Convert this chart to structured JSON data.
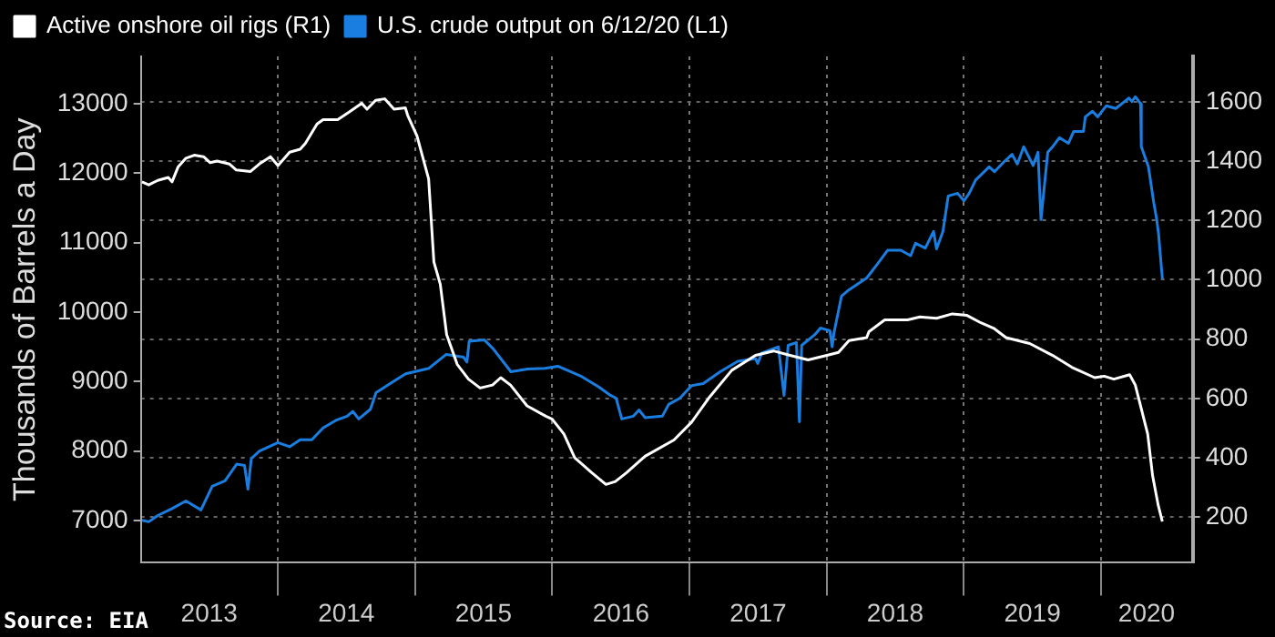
{
  "chart_data": {
    "type": "line",
    "ylabel": "Thousands of Barrels a Day",
    "legend": "top left",
    "grid": true,
    "annotations": [
      "Source: EIA"
    ],
    "xlim": [
      "2013-01-01",
      "2020-09-01"
    ],
    "xticks": [
      {
        "value": "2013-07-02",
        "label": "2013"
      },
      {
        "value": "2014-01-01",
        "label": null
      },
      {
        "value": "2014-07-02",
        "label": "2014"
      },
      {
        "value": "2015-01-01",
        "label": null
      },
      {
        "value": "2015-07-02",
        "label": "2015"
      },
      {
        "value": "2016-01-01",
        "label": null
      },
      {
        "value": "2016-07-02",
        "label": "2016"
      },
      {
        "value": "2017-01-01",
        "label": null
      },
      {
        "value": "2017-07-02",
        "label": "2017"
      },
      {
        "value": "2018-01-01",
        "label": null
      },
      {
        "value": "2018-07-02",
        "label": "2018"
      },
      {
        "value": "2019-01-01",
        "label": null
      },
      {
        "value": "2019-07-02",
        "label": "2019"
      },
      {
        "value": "2020-01-01",
        "label": null
      },
      {
        "value": "2020-05-01",
        "label": "2020"
      }
    ],
    "ylim": [
      6390,
      13680
    ],
    "yticks": [
      7000,
      8000,
      9000,
      10000,
      11000,
      12000,
      13000
    ],
    "y2lim": [
      46,
      1753
    ],
    "y2ticks": [
      200,
      400,
      600,
      800,
      1000,
      1200,
      1400,
      1600
    ],
    "series": [
      {
        "name": "Active onshore oil rigs (R1)",
        "color": "#ffffff",
        "axis": "y2",
        "x": [
          "2013-01-04",
          "2013-01-22",
          "2013-02-15",
          "2013-03-15",
          "2013-03-25",
          "2013-04-10",
          "2013-05-01",
          "2013-05-23",
          "2013-06-17",
          "2013-07-04",
          "2013-07-23",
          "2013-08-25",
          "2013-09-12",
          "2013-10-20",
          "2013-11-12",
          "2013-12-12",
          "2014-01-01",
          "2014-02-01",
          "2014-03-01",
          "2014-03-15",
          "2014-04-15",
          "2014-05-01",
          "2014-06-09",
          "2014-07-09",
          "2014-08-12",
          "2014-08-26",
          "2014-09-18",
          "2014-10-12",
          "2014-11-06",
          "2014-12-06",
          "2014-12-12",
          "2015-01-06",
          "2015-02-06",
          "2015-02-20",
          "2015-03-09",
          "2015-03-26",
          "2015-04-23",
          "2015-05-23",
          "2015-06-23",
          "2015-07-26",
          "2015-08-17",
          "2015-09-12",
          "2015-10-26",
          "2015-12-15",
          "2016-01-01",
          "2016-02-01",
          "2016-03-01",
          "2016-04-15",
          "2016-05-23",
          "2016-06-17",
          "2016-07-17",
          "2016-09-04",
          "2016-11-20",
          "2017-01-06",
          "2017-02-23",
          "2017-04-23",
          "2017-06-25",
          "2017-08-12",
          "2017-09-25",
          "2017-11-12",
          "2018-01-01",
          "2018-02-01",
          "2018-03-01",
          "2018-04-17",
          "2018-04-23",
          "2018-06-04",
          "2018-08-04",
          "2018-09-06",
          "2018-10-20",
          "2018-12-01",
          "2019-01-09",
          "2019-02-15",
          "2019-03-23",
          "2019-04-23",
          "2019-06-25",
          "2019-08-25",
          "2019-10-15",
          "2019-12-15",
          "2020-01-09",
          "2020-02-04",
          "2020-03-17",
          "2020-04-01",
          "2020-05-04",
          "2020-05-17",
          "2020-06-01",
          "2020-06-12"
        ],
        "values": [
          1330,
          1320,
          1335,
          1345,
          1330,
          1380,
          1410,
          1420,
          1415,
          1395,
          1400,
          1390,
          1370,
          1365,
          1390,
          1415,
          1385,
          1430,
          1440,
          1460,
          1525,
          1540,
          1540,
          1565,
          1595,
          1575,
          1605,
          1610,
          1575,
          1580,
          1555,
          1485,
          1340,
          1060,
          985,
          815,
          715,
          665,
          635,
          645,
          670,
          645,
          575,
          540,
          530,
          480,
          400,
          350,
          310,
          320,
          350,
          405,
          460,
          520,
          605,
          695,
          745,
          760,
          745,
          730,
          745,
          755,
          795,
          805,
          825,
          865,
          865,
          875,
          870,
          885,
          880,
          855,
          835,
          805,
          785,
          745,
          705,
          670,
          675,
          665,
          680,
          645,
          480,
          340,
          240,
          185
        ]
      },
      {
        "name": "U.S. crude output on 6/12/20 (L1)",
        "color": "#1a7ee0",
        "x": [
          "2013-01-04",
          "2013-01-22",
          "2013-02-15",
          "2013-03-25",
          "2013-05-01",
          "2013-06-10",
          "2013-07-10",
          "2013-08-13",
          "2013-09-13",
          "2013-10-04",
          "2013-10-13",
          "2013-10-22",
          "2013-11-13",
          "2014-01-01",
          "2014-02-01",
          "2014-03-01",
          "2014-04-01",
          "2014-05-01",
          "2014-06-04",
          "2014-07-04",
          "2014-07-19",
          "2014-08-04",
          "2014-09-04",
          "2014-09-19",
          "2014-11-07",
          "2014-12-07",
          "2015-02-07",
          "2015-03-25",
          "2015-05-10",
          "2015-05-19",
          "2015-05-25",
          "2015-07-04",
          "2015-07-28",
          "2015-09-13",
          "2015-10-28",
          "2015-12-13",
          "2016-01-16",
          "2016-03-16",
          "2016-05-04",
          "2016-06-04",
          "2016-06-19",
          "2016-07-04",
          "2016-08-04",
          "2016-08-19",
          "2016-09-04",
          "2016-10-20",
          "2016-11-06",
          "2016-12-06",
          "2017-01-06",
          "2017-02-06",
          "2017-03-23",
          "2017-05-09",
          "2017-06-25",
          "2017-07-01",
          "2017-07-12",
          "2017-08-25",
          "2017-09-09",
          "2017-09-20",
          "2017-10-12",
          "2017-10-20",
          "2017-10-26",
          "2017-12-01",
          "2017-12-15",
          "2018-01-09",
          "2018-01-15",
          "2018-01-20",
          "2018-02-09",
          "2018-03-01",
          "2018-04-17",
          "2018-05-17",
          "2018-06-12",
          "2018-07-17",
          "2018-08-12",
          "2018-08-25",
          "2018-09-20",
          "2018-10-12",
          "2018-10-20",
          "2018-11-06",
          "2018-11-20",
          "2018-12-15",
          "2019-01-01",
          "2019-01-15",
          "2019-02-01",
          "2019-03-09",
          "2019-03-23",
          "2019-04-17",
          "2019-05-09",
          "2019-05-23",
          "2019-06-09",
          "2019-07-04",
          "2019-07-17",
          "2019-07-25",
          "2019-08-12",
          "2019-08-25",
          "2019-09-12",
          "2019-10-06",
          "2019-10-20",
          "2019-11-15",
          "2019-11-20",
          "2019-12-09",
          "2019-12-23",
          "2020-01-15",
          "2020-02-09",
          "2020-03-01",
          "2020-03-15",
          "2020-03-23",
          "2020-04-01",
          "2020-04-15",
          "2020-04-17",
          "2020-05-06",
          "2020-05-20",
          "2020-05-28",
          "2020-06-02",
          "2020-06-12"
        ],
        "values": [
          7000,
          6980,
          7070,
          7170,
          7280,
          7150,
          7490,
          7570,
          7810,
          7790,
          7450,
          7890,
          8000,
          8120,
          8060,
          8160,
          8160,
          8330,
          8440,
          8500,
          8570,
          8460,
          8600,
          8840,
          9010,
          9110,
          9190,
          9390,
          9350,
          9280,
          9580,
          9600,
          9470,
          9140,
          9180,
          9190,
          9220,
          9080,
          8920,
          8800,
          8760,
          8460,
          8500,
          8590,
          8480,
          8500,
          8670,
          8760,
          8940,
          8970,
          9140,
          9290,
          9330,
          9260,
          9410,
          9500,
          8800,
          9520,
          9560,
          8420,
          9520,
          9680,
          9770,
          9730,
          9500,
          9700,
          10230,
          10320,
          10490,
          10700,
          10890,
          10890,
          10810,
          10990,
          10920,
          11160,
          10910,
          11160,
          11670,
          11710,
          11600,
          11710,
          11900,
          12090,
          12020,
          12160,
          12270,
          12130,
          12380,
          12110,
          12300,
          11330,
          12300,
          12380,
          12510,
          12430,
          12600,
          12600,
          12810,
          12890,
          12810,
          12970,
          12930,
          13020,
          13080,
          13030,
          13100,
          13000,
          12380,
          12090,
          11580,
          11330,
          11120,
          10480
        ]
      }
    ]
  }
}
